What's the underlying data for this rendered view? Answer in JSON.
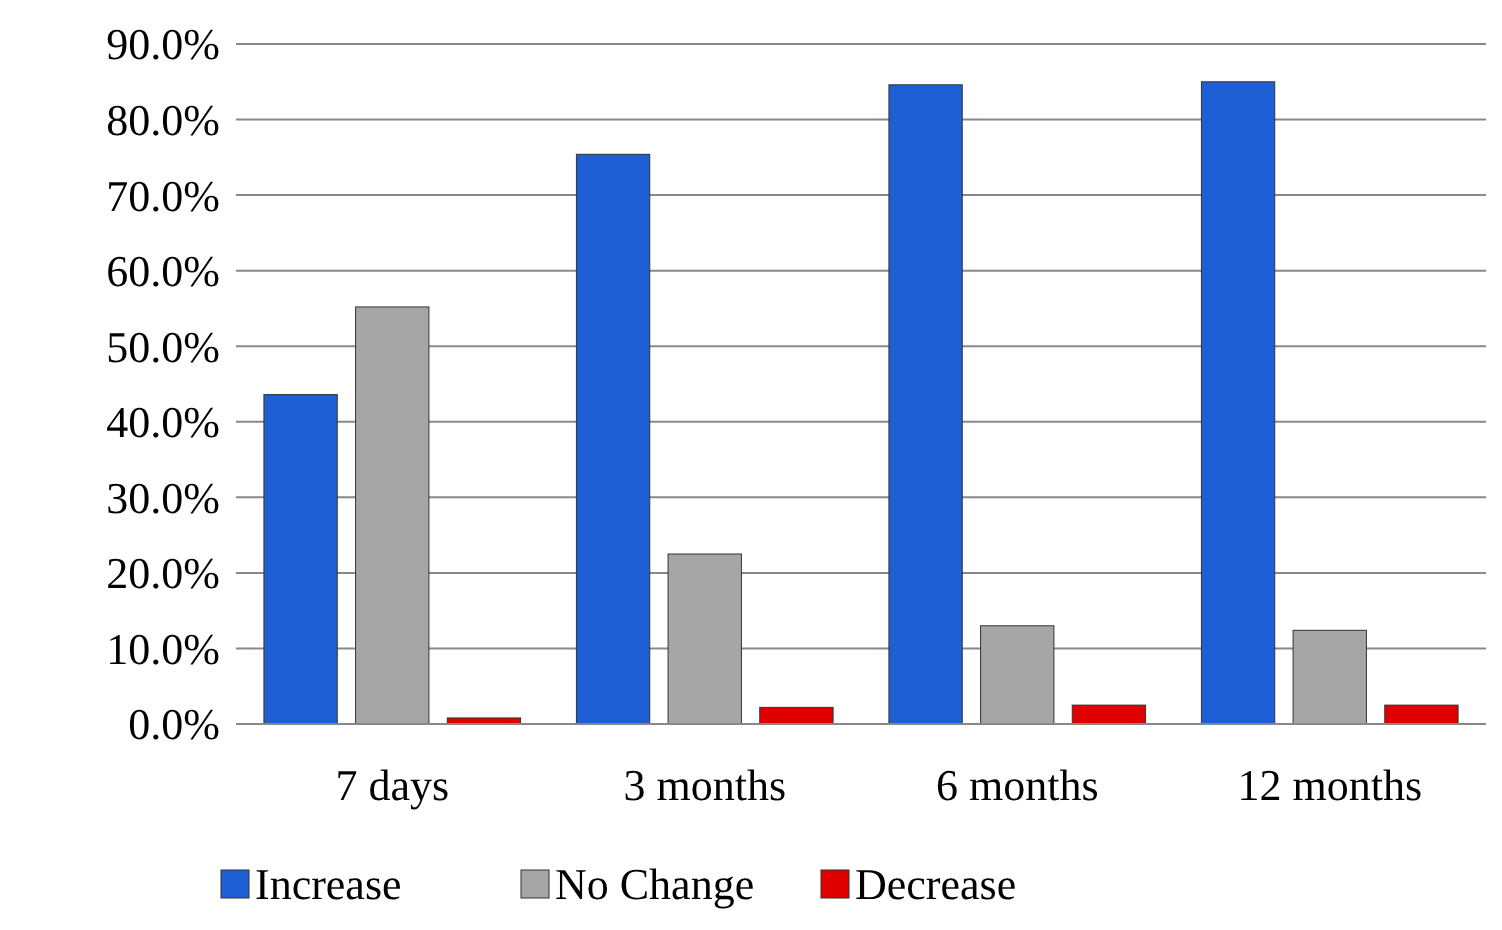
{
  "chart_data": {
    "type": "bar",
    "categories": [
      "7 days",
      "3 months",
      "6 months",
      "12 months"
    ],
    "series": [
      {
        "name": "Increase",
        "color": "#1f5fd6",
        "values": [
          43.6,
          75.4,
          84.6,
          85.0
        ]
      },
      {
        "name": "No Change",
        "color": "#a6a6a6",
        "values": [
          55.2,
          22.5,
          13.0,
          12.4
        ]
      },
      {
        "name": "Decrease",
        "color": "#e00000",
        "values": [
          0.8,
          2.2,
          2.5,
          2.5
        ]
      }
    ],
    "ylim": [
      0,
      90
    ],
    "yticks": [
      {
        "value": 0,
        "label": "0.0%"
      },
      {
        "value": 10,
        "label": "10.0%"
      },
      {
        "value": 20,
        "label": "20.0%"
      },
      {
        "value": 30,
        "label": "30.0%"
      },
      {
        "value": 40,
        "label": "40.0%"
      },
      {
        "value": 50,
        "label": "50.0%"
      },
      {
        "value": 60,
        "label": "60.0%"
      },
      {
        "value": 70,
        "label": "70.0%"
      },
      {
        "value": 80,
        "label": "80.0%"
      },
      {
        "value": 90,
        "label": "90.0%"
      }
    ],
    "grid": "y",
    "legend": "bottom"
  }
}
